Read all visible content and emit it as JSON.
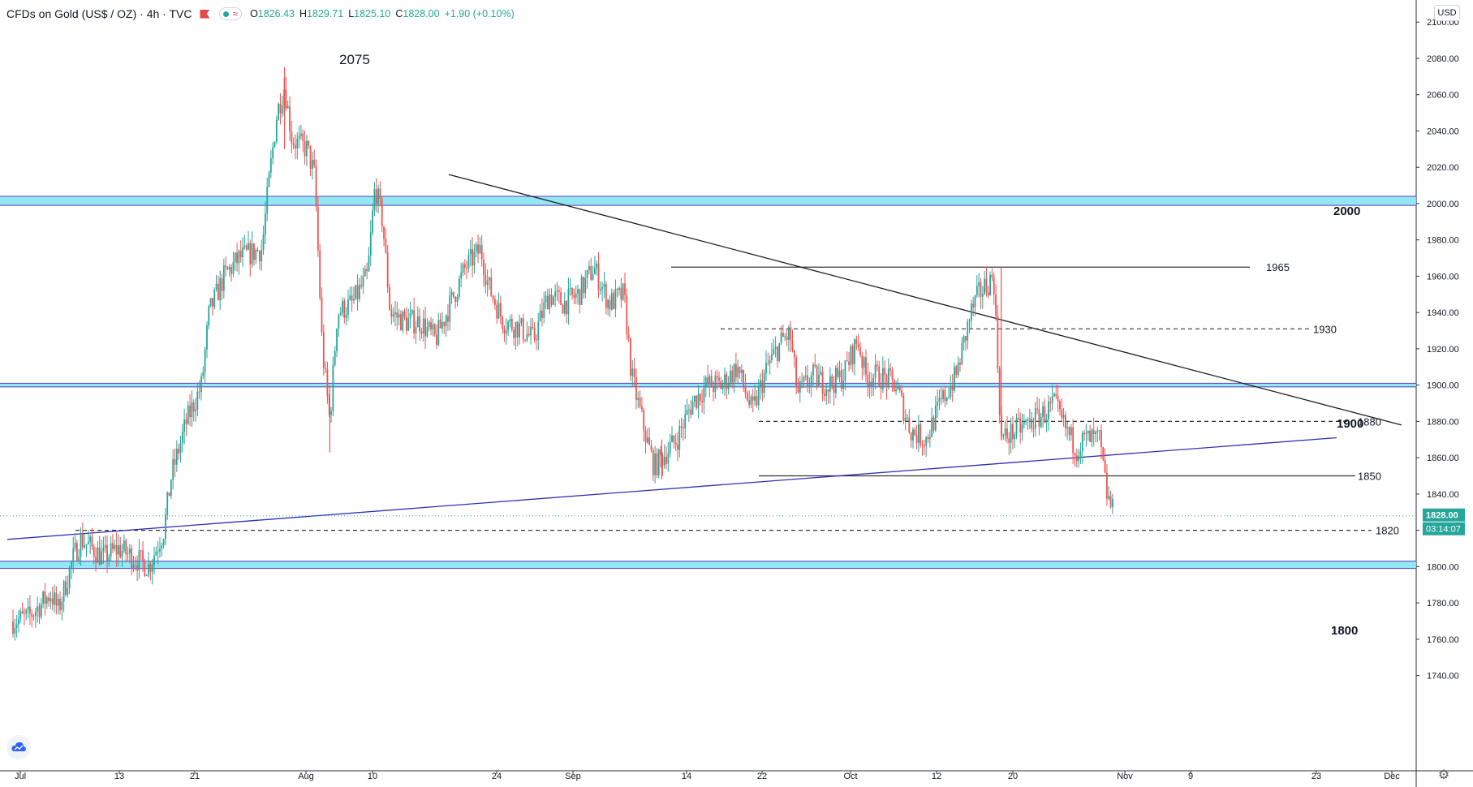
{
  "header": {
    "symbol_title": "CFDs on Gold (US$ / OZ) · 4h · TVC",
    "ohlc": [
      {
        "key": "O",
        "value": "1826.43"
      },
      {
        "key": "H",
        "value": "1829.71"
      },
      {
        "key": "L",
        "value": "1825.10"
      },
      {
        "key": "C",
        "value": "1828.00"
      }
    ],
    "change": "+1.90 (+0.10%)"
  },
  "price_scale": {
    "currency": "USD",
    "current_price": "1828.00",
    "countdown": "03:14:07"
  },
  "colors": {
    "up": "#26a69a",
    "down": "#ef5350",
    "trend": "#5d5fd6",
    "zone": "#7fe3f1",
    "zone_border": "#5a3fc0"
  },
  "chart_data": {
    "type": "candlestick",
    "title": "CFDs on Gold (US$ / OZ)",
    "timeframe": "4h",
    "ylim": [
      1730,
      2105
    ],
    "yticks": [
      1740,
      1760,
      1780,
      1800,
      1820,
      1840,
      1860,
      1880,
      1900,
      1920,
      1940,
      1960,
      1980,
      2000,
      2020,
      2040,
      2060,
      2080,
      2100
    ],
    "xticks": [
      "Jul",
      "13",
      "21",
      "Aug",
      "10",
      "24",
      "Sep",
      "14",
      "22",
      "Oct",
      "12",
      "20",
      "Nov",
      "9",
      "23",
      "Dec"
    ],
    "close_path": [
      {
        "date": "2020-07-01",
        "price": 1770
      },
      {
        "date": "2020-07-03",
        "price": 1772
      },
      {
        "date": "2020-07-06",
        "price": 1785
      },
      {
        "date": "2020-07-07",
        "price": 1776
      },
      {
        "date": "2020-07-09",
        "price": 1805
      },
      {
        "date": "2020-07-10",
        "price": 1815
      },
      {
        "date": "2020-07-13",
        "price": 1805
      },
      {
        "date": "2020-07-15",
        "price": 1810
      },
      {
        "date": "2020-07-17",
        "price": 1805
      },
      {
        "date": "2020-07-19",
        "price": 1800
      },
      {
        "date": "2020-07-21",
        "price": 1820
      },
      {
        "date": "2020-07-22",
        "price": 1850
      },
      {
        "date": "2020-07-24",
        "price": 1880
      },
      {
        "date": "2020-07-26",
        "price": 1900
      },
      {
        "date": "2020-07-27",
        "price": 1940
      },
      {
        "date": "2020-07-29",
        "price": 1960
      },
      {
        "date": "2020-07-31",
        "price": 1970
      },
      {
        "date": "2020-08-03",
        "price": 1975
      },
      {
        "date": "2020-08-04",
        "price": 2015
      },
      {
        "date": "2020-08-05",
        "price": 2050
      },
      {
        "date": "2020-08-06",
        "price": 2065
      },
      {
        "date": "2020-08-07",
        "price": 2035
      },
      {
        "date": "2020-08-09",
        "price": 2030
      },
      {
        "date": "2020-08-10",
        "price": 2015
      },
      {
        "date": "2020-08-11",
        "price": 1920
      },
      {
        "date": "2020-08-12",
        "price": 1880
      },
      {
        "date": "2020-08-13",
        "price": 1940
      },
      {
        "date": "2020-08-15",
        "price": 1945
      },
      {
        "date": "2020-08-17",
        "price": 1960
      },
      {
        "date": "2020-08-18",
        "price": 2010
      },
      {
        "date": "2020-08-19",
        "price": 1990
      },
      {
        "date": "2020-08-20",
        "price": 1940
      },
      {
        "date": "2020-08-22",
        "price": 1935
      },
      {
        "date": "2020-08-24",
        "price": 1935
      },
      {
        "date": "2020-08-26",
        "price": 1925
      },
      {
        "date": "2020-08-28",
        "price": 1945
      },
      {
        "date": "2020-08-30",
        "price": 1965
      },
      {
        "date": "2020-09-01",
        "price": 1975
      },
      {
        "date": "2020-09-02",
        "price": 1955
      },
      {
        "date": "2020-09-04",
        "price": 1935
      },
      {
        "date": "2020-09-06",
        "price": 1932
      },
      {
        "date": "2020-09-08",
        "price": 1925
      },
      {
        "date": "2020-09-10",
        "price": 1950
      },
      {
        "date": "2020-09-12",
        "price": 1945
      },
      {
        "date": "2020-09-14",
        "price": 1950
      },
      {
        "date": "2020-09-16",
        "price": 1965
      },
      {
        "date": "2020-09-18",
        "price": 1945
      },
      {
        "date": "2020-09-20",
        "price": 1950
      },
      {
        "date": "2020-09-21",
        "price": 1905
      },
      {
        "date": "2020-09-23",
        "price": 1870
      },
      {
        "date": "2020-09-24",
        "price": 1855
      },
      {
        "date": "2020-09-25",
        "price": 1860
      },
      {
        "date": "2020-09-27",
        "price": 1870
      },
      {
        "date": "2020-09-29",
        "price": 1890
      },
      {
        "date": "2020-10-01",
        "price": 1900
      },
      {
        "date": "2020-10-03",
        "price": 1900
      },
      {
        "date": "2020-10-05",
        "price": 1910
      },
      {
        "date": "2020-10-07",
        "price": 1885
      },
      {
        "date": "2020-10-09",
        "price": 1910
      },
      {
        "date": "2020-10-11",
        "price": 1925
      },
      {
        "date": "2020-10-12",
        "price": 1928
      },
      {
        "date": "2020-10-13",
        "price": 1895
      },
      {
        "date": "2020-10-15",
        "price": 1905
      },
      {
        "date": "2020-10-17",
        "price": 1900
      },
      {
        "date": "2020-10-19",
        "price": 1905
      },
      {
        "date": "2020-10-21",
        "price": 1925
      },
      {
        "date": "2020-10-22",
        "price": 1905
      },
      {
        "date": "2020-10-24",
        "price": 1905
      },
      {
        "date": "2020-10-26",
        "price": 1900
      },
      {
        "date": "2020-10-28",
        "price": 1875
      },
      {
        "date": "2020-10-30",
        "price": 1870
      },
      {
        "date": "2020-11-01",
        "price": 1890
      },
      {
        "date": "2020-11-03",
        "price": 1905
      },
      {
        "date": "2020-11-05",
        "price": 1940
      },
      {
        "date": "2020-11-06",
        "price": 1950
      },
      {
        "date": "2020-11-08",
        "price": 1960
      },
      {
        "date": "2020-11-09",
        "price": 1870
      },
      {
        "date": "2020-11-11",
        "price": 1875
      },
      {
        "date": "2020-11-13",
        "price": 1880
      },
      {
        "date": "2020-11-15",
        "price": 1885
      },
      {
        "date": "2020-11-16",
        "price": 1890
      },
      {
        "date": "2020-11-17",
        "price": 1880
      },
      {
        "date": "2020-11-19",
        "price": 1865
      },
      {
        "date": "2020-11-20",
        "price": 1870
      },
      {
        "date": "2020-11-22",
        "price": 1870
      },
      {
        "date": "2020-11-23",
        "price": 1840
      },
      {
        "date": "2020-11-24",
        "price": 1828
      }
    ],
    "annotations": {
      "peak": {
        "label": "2075",
        "price": 2075
      },
      "zones": [
        {
          "label": "2000",
          "low": 1999,
          "high": 2004
        },
        {
          "label": "1900",
          "low": 1899,
          "high": 1901
        },
        {
          "label": "1800",
          "low": 1799,
          "high": 1803
        }
      ],
      "levels": [
        {
          "label": "1965",
          "price": 1965,
          "style": "solid"
        },
        {
          "label": "1930",
          "price": 1931,
          "style": "dashed"
        },
        {
          "label": "1880",
          "price": 1880,
          "style": "dashed"
        },
        {
          "label": "1850",
          "price": 1850,
          "style": "solid"
        },
        {
          "label": "1820",
          "price": 1820,
          "style": "dashed"
        }
      ],
      "trendlines": [
        {
          "name": "descending resistance",
          "from": {
            "date": "2020-08-18",
            "price": 2016
          },
          "to": {
            "date": "2020-11-30",
            "price": 1872
          }
        },
        {
          "name": "rising support",
          "from": {
            "date": "2020-07-01",
            "price": 1815
          },
          "to": {
            "date": "2020-11-24",
            "price": 1871
          }
        }
      ]
    }
  }
}
